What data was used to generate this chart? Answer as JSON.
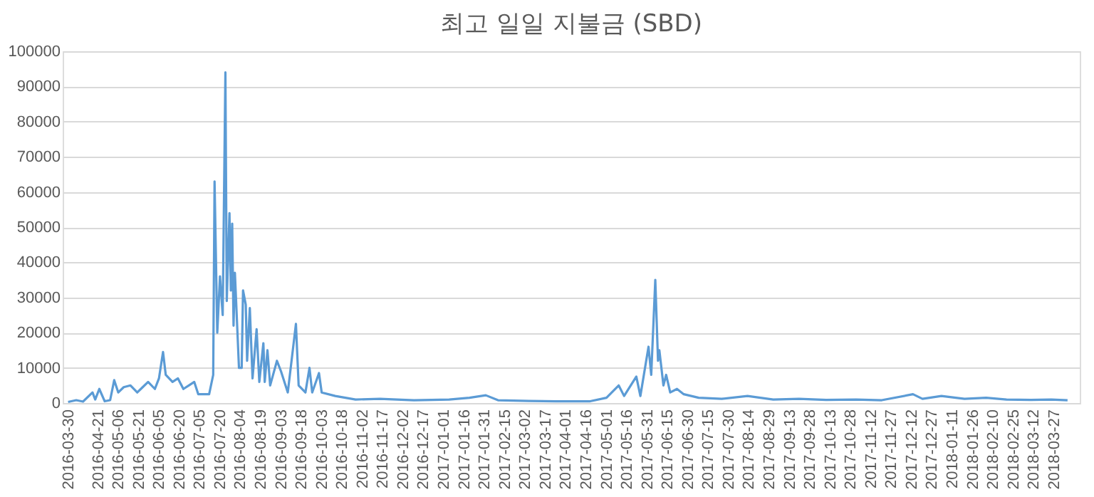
{
  "chart_data": {
    "type": "line",
    "title": "최고 일일 지불금 (SBD)",
    "x": [
      "2016-03-30",
      "2016-04-05",
      "2016-04-10",
      "2016-04-17",
      "2016-04-19",
      "2016-04-22",
      "2016-04-26",
      "2016-04-30",
      "2016-05-03",
      "2016-05-06",
      "2016-05-10",
      "2016-05-15",
      "2016-05-20",
      "2016-05-24",
      "2016-05-28",
      "2016-06-02",
      "2016-06-05",
      "2016-06-08",
      "2016-06-10",
      "2016-06-15",
      "2016-06-19",
      "2016-06-23",
      "2016-06-27",
      "2016-07-01",
      "2016-07-04",
      "2016-07-12",
      "2016-07-15",
      "2016-07-16",
      "2016-07-18",
      "2016-07-20",
      "2016-07-22",
      "2016-07-24",
      "2016-07-25",
      "2016-07-27",
      "2016-07-28",
      "2016-07-29",
      "2016-07-30",
      "2016-07-31",
      "2016-08-03",
      "2016-08-05",
      "2016-08-06",
      "2016-08-08",
      "2016-08-09",
      "2016-08-11",
      "2016-08-13",
      "2016-08-16",
      "2016-08-18",
      "2016-08-21",
      "2016-08-22",
      "2016-08-24",
      "2016-08-26",
      "2016-08-31",
      "2016-09-03",
      "2016-09-08",
      "2016-09-14",
      "2016-09-16",
      "2016-09-21",
      "2016-09-24",
      "2016-09-26",
      "2016-10-01",
      "2016-10-03",
      "2016-10-13",
      "2016-10-28",
      "2016-11-15",
      "2016-12-10",
      "2017-01-05",
      "2017-01-20",
      "2017-02-01",
      "2017-02-10",
      "2017-03-05",
      "2017-03-25",
      "2017-04-19",
      "2017-05-01",
      "2017-05-10",
      "2017-05-14",
      "2017-05-23",
      "2017-05-26",
      "2017-06-01",
      "2017-06-03",
      "2017-06-06",
      "2017-06-08",
      "2017-06-09",
      "2017-06-12",
      "2017-06-14",
      "2017-06-17",
      "2017-06-22",
      "2017-06-27",
      "2017-07-08",
      "2017-07-25",
      "2017-08-13",
      "2017-09-01",
      "2017-09-20",
      "2017-10-10",
      "2017-11-01",
      "2017-11-20",
      "2017-12-13",
      "2017-12-20",
      "2018-01-03",
      "2018-01-20",
      "2018-02-05",
      "2018-02-20",
      "2018-03-10",
      "2018-03-25",
      "2018-04-06"
    ],
    "series": [
      {
        "color": "#5b9bd5",
        "values": [
          300,
          800,
          400,
          3000,
          1000,
          4000,
          500,
          800,
          6500,
          3000,
          4500,
          5000,
          3000,
          4500,
          6000,
          4000,
          7000,
          14500,
          8000,
          6000,
          7000,
          4000,
          5000,
          6000,
          2500,
          2500,
          8000,
          63000,
          20000,
          36000,
          25000,
          94000,
          29000,
          54000,
          32000,
          51000,
          22000,
          37000,
          10000,
          10000,
          32000,
          28000,
          12000,
          27000,
          7000,
          21000,
          6000,
          17000,
          6000,
          15000,
          5000,
          12000,
          9000,
          3000,
          22500,
          5000,
          3000,
          10000,
          3000,
          8500,
          3000,
          2000,
          1000,
          1200,
          800,
          1000,
          1500,
          2200,
          800,
          600,
          500,
          500,
          1500,
          5000,
          2000,
          7500,
          2000,
          16000,
          8000,
          35000,
          12000,
          15000,
          5000,
          8000,
          3000,
          4000,
          2500,
          1500,
          1200,
          2000,
          1000,
          1200,
          900,
          1000,
          800,
          2500,
          1200,
          2000,
          1200,
          1500,
          1000,
          900,
          1000,
          800
        ]
      }
    ],
    "xlim": [
      "2016-03-26",
      "2018-04-15"
    ],
    "xticks": [
      "2016-03-30",
      "2016-04-21",
      "2016-05-06",
      "2016-05-21",
      "2016-06-05",
      "2016-06-20",
      "2016-07-05",
      "2016-07-20",
      "2016-08-04",
      "2016-08-19",
      "2016-09-03",
      "2016-09-18",
      "2016-10-03",
      "2016-10-18",
      "2016-11-02",
      "2016-11-17",
      "2016-12-02",
      "2016-12-17",
      "2017-01-01",
      "2017-01-16",
      "2017-01-31",
      "2017-02-15",
      "2017-03-02",
      "2017-03-17",
      "2017-04-01",
      "2017-04-16",
      "2017-05-01",
      "2017-05-16",
      "2017-05-31",
      "2017-06-15",
      "2017-06-30",
      "2017-07-15",
      "2017-07-30",
      "2017-08-14",
      "2017-08-29",
      "2017-09-13",
      "2017-09-28",
      "2017-10-13",
      "2017-10-28",
      "2017-11-12",
      "2017-11-27",
      "2017-12-12",
      "2017-12-27",
      "2018-01-11",
      "2018-01-26",
      "2018-02-10",
      "2018-02-25",
      "2018-03-12",
      "2018-03-27"
    ],
    "ylim": [
      0,
      100000
    ],
    "yticks": [
      0,
      10000,
      20000,
      30000,
      40000,
      50000,
      60000,
      70000,
      80000,
      90000,
      100000
    ],
    "grid": "y",
    "legend": false,
    "marker": "none",
    "line_style": "solid"
  }
}
